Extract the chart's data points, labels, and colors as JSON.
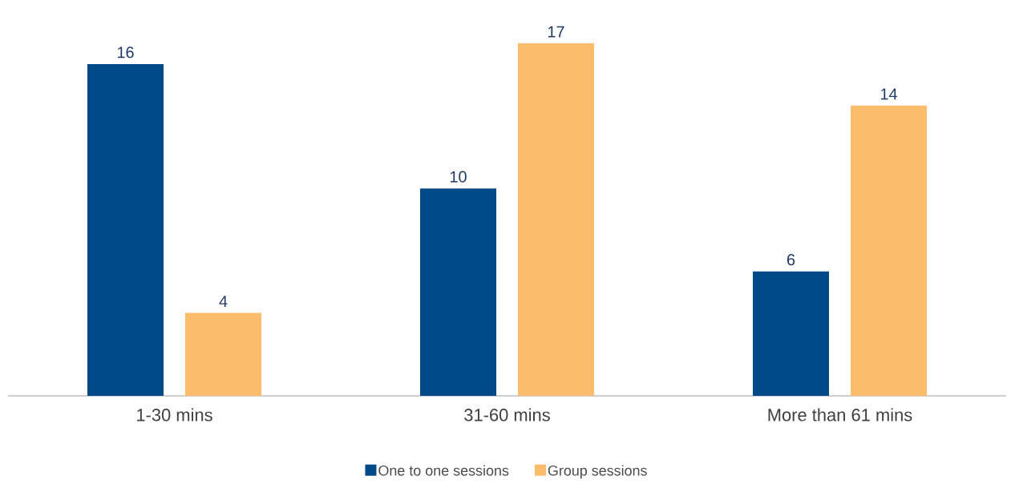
{
  "chart_data": {
    "type": "bar",
    "categories": [
      "1-30 mins",
      "31-60 mins",
      "More than 61 mins"
    ],
    "series": [
      {
        "name": "One to one sessions",
        "color": "#004b87",
        "values": [
          16,
          10,
          6
        ]
      },
      {
        "name": "Group sessions",
        "color": "#fbbc6b",
        "values": [
          4,
          17,
          14
        ]
      }
    ],
    "data_labels": true,
    "legend": "bottom"
  }
}
